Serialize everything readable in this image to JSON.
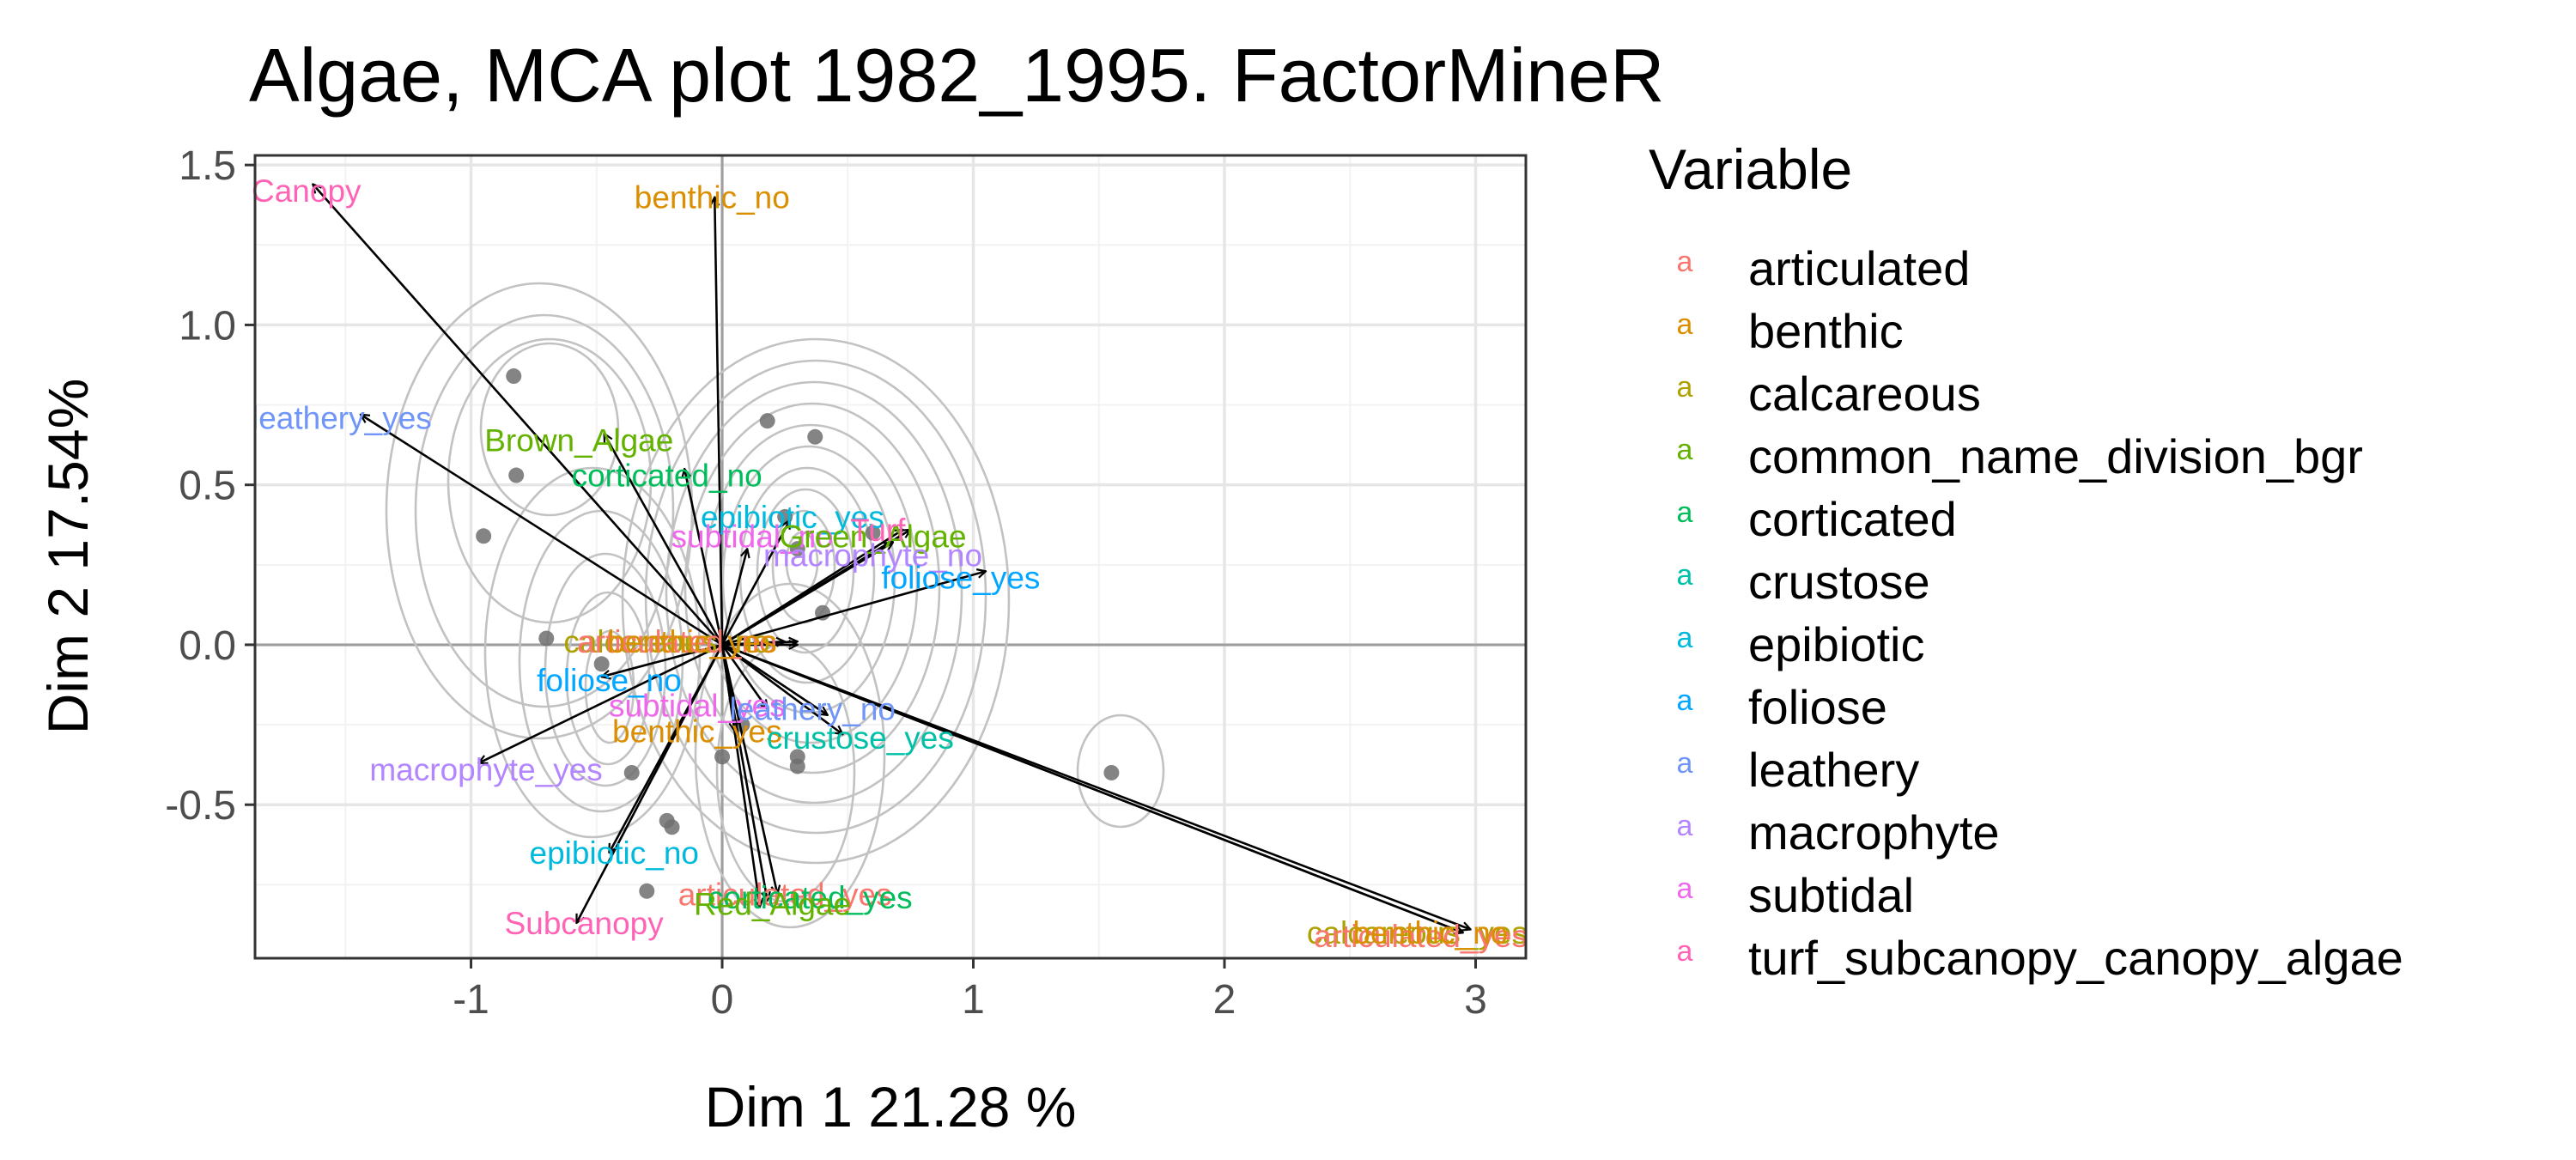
{
  "chart_data": {
    "type": "scatter",
    "title": "Algae, MCA plot 1982_1995. FactorMineR",
    "xlabel": "Dim 1 21.28 %",
    "ylabel": "Dim 2 17.54%",
    "xlim": [
      -1.86,
      3.2
    ],
    "ylim": [
      -0.98,
      1.53
    ],
    "xticks": [
      -1,
      0,
      1,
      2,
      3
    ],
    "yticks": [
      -0.5,
      0.0,
      0.5,
      1.0,
      1.5
    ],
    "xtick_labels": [
      "-1",
      "0",
      "1",
      "2",
      "3"
    ],
    "ytick_labels": [
      "-0.5",
      "0.0",
      "0.5",
      "1.0",
      "1.5"
    ],
    "legend": {
      "title": "Variable",
      "position": "right",
      "key_glyph": "a",
      "entries": [
        {
          "name": "articulated",
          "color": "#F8766D"
        },
        {
          "name": "benthic",
          "color": "#DB8E00"
        },
        {
          "name": "calcareous",
          "color": "#AEA200"
        },
        {
          "name": "common_name_division_bgr",
          "color": "#64B200"
        },
        {
          "name": "corticated",
          "color": "#00BD5C"
        },
        {
          "name": "crustose",
          "color": "#00C1A7"
        },
        {
          "name": "epibiotic",
          "color": "#00BADE"
        },
        {
          "name": "foliose",
          "color": "#00A6FF"
        },
        {
          "name": "leathery",
          "color": "#6F95F8"
        },
        {
          "name": "macrophyte",
          "color": "#B385FF"
        },
        {
          "name": "subtidal",
          "color": "#EF67EB"
        },
        {
          "name": "turf_subcanopy_canopy_algae",
          "color": "#FF63B6"
        }
      ]
    },
    "points": [
      {
        "x": -0.83,
        "y": 0.84
      },
      {
        "x": -0.82,
        "y": 0.53
      },
      {
        "x": -0.95,
        "y": 0.34
      },
      {
        "x": -0.7,
        "y": 0.02
      },
      {
        "x": -0.48,
        "y": -0.06
      },
      {
        "x": -0.36,
        "y": -0.4
      },
      {
        "x": -0.22,
        "y": -0.55
      },
      {
        "x": -0.2,
        "y": -0.57
      },
      {
        "x": -0.3,
        "y": -0.77
      },
      {
        "x": 0.18,
        "y": 0.7
      },
      {
        "x": 0.37,
        "y": 0.65
      },
      {
        "x": 0.25,
        "y": 0.4
      },
      {
        "x": 0.3,
        "y": 0.3
      },
      {
        "x": 0.6,
        "y": 0.35
      },
      {
        "x": 0.4,
        "y": 0.1
      },
      {
        "x": 0.3,
        "y": -0.35
      },
      {
        "x": 0.3,
        "y": -0.38
      },
      {
        "x": 0.0,
        "y": -0.35
      },
      {
        "x": 0.08,
        "y": -0.25
      },
      {
        "x": 1.55,
        "y": -0.4
      }
    ],
    "arrows": [
      {
        "label": "Canopy",
        "variable": "turf_subcanopy_canopy_algae",
        "x": -1.63,
        "y": 1.44,
        "lx": -1.72,
        "ly": 1.42
      },
      {
        "label": "benthic_no",
        "variable": "benthic",
        "x": -0.03,
        "y": 1.4,
        "lx": -0.04,
        "ly": 1.4
      },
      {
        "label": "leathery_yes",
        "variable": "leathery",
        "x": -1.44,
        "y": 0.72,
        "lx": -1.5,
        "ly": 0.71
      },
      {
        "label": "Brown_Algae",
        "variable": "common_name_division_bgr",
        "x": -0.47,
        "y": 0.66,
        "lx": -0.57,
        "ly": 0.64
      },
      {
        "label": "corticated_no",
        "variable": "corticated",
        "x": -0.15,
        "y": 0.55,
        "lx": -0.22,
        "ly": 0.53
      },
      {
        "label": "epibiotic_yes",
        "variable": "epibiotic",
        "x": 0.27,
        "y": 0.39,
        "lx": 0.28,
        "ly": 0.4
      },
      {
        "label": "subtidal_no",
        "variable": "subtidal",
        "x": 0.1,
        "y": 0.3,
        "lx": 0.12,
        "ly": 0.34
      },
      {
        "label": "Green_Algae",
        "variable": "common_name_division_bgr",
        "x": 0.75,
        "y": 0.36,
        "lx": 0.6,
        "ly": 0.34
      },
      {
        "label": "Turf",
        "variable": "turf_subcanopy_canopy_algae",
        "x": 0.72,
        "y": 0.36,
        "lx": 0.62,
        "ly": 0.36
      },
      {
        "label": "macrophyte_no",
        "variable": "macrophyte",
        "x": 0.68,
        "y": 0.32,
        "lx": 0.6,
        "ly": 0.28
      },
      {
        "label": "foliose_yes",
        "variable": "foliose",
        "x": 1.05,
        "y": 0.23,
        "lx": 0.95,
        "ly": 0.21
      },
      {
        "label": "calcareous_no",
        "variable": "calcareous",
        "x": 0.25,
        "y": 0.01,
        "lx": -0.22,
        "ly": 0.01
      },
      {
        "label": "articulated_no",
        "variable": "articulated",
        "x": 0.3,
        "y": 0.01,
        "lx": -0.18,
        "ly": 0.01
      },
      {
        "label": "benthic_yes",
        "variable": "benthic",
        "x": 0.3,
        "y": 0.0,
        "lx": -0.12,
        "ly": 0.01
      },
      {
        "label": "foliose_no",
        "variable": "foliose",
        "x": -0.48,
        "y": -0.1,
        "lx": -0.45,
        "ly": -0.11
      },
      {
        "label": "subtidal_yes",
        "variable": "subtidal",
        "x": 0.18,
        "y": -0.2,
        "lx": -0.1,
        "ly": -0.19
      },
      {
        "label": "leathery_no",
        "variable": "leathery",
        "x": 0.42,
        "y": -0.22,
        "lx": 0.36,
        "ly": -0.2
      },
      {
        "label": "benthic_yes",
        "variable": "benthic",
        "x": 0.05,
        "y": -0.27,
        "lx": -0.1,
        "ly": -0.27
      },
      {
        "label": "crustose_yes",
        "variable": "crustose",
        "x": 0.48,
        "y": -0.28,
        "lx": 0.55,
        "ly": -0.29
      },
      {
        "label": "macrophyte_yes",
        "variable": "macrophyte",
        "x": -0.97,
        "y": -0.37,
        "lx": -0.94,
        "ly": -0.39
      },
      {
        "label": "epibiotic_no",
        "variable": "epibiotic",
        "x": -0.45,
        "y": -0.65,
        "lx": -0.43,
        "ly": -0.65
      },
      {
        "label": "articulated_yes",
        "variable": "articulated",
        "x": 0.18,
        "y": -0.8,
        "lx": 0.25,
        "ly": -0.78
      },
      {
        "label": "corticated_yes",
        "variable": "corticated",
        "x": 0.22,
        "y": -0.78,
        "lx": 0.35,
        "ly": -0.79
      },
      {
        "label": "Red_Algae",
        "variable": "common_name_division_bgr",
        "x": 0.15,
        "y": -0.82,
        "lx": 0.2,
        "ly": -0.81
      },
      {
        "label": "Subcanopy",
        "variable": "turf_subcanopy_canopy_algae",
        "x": -0.58,
        "y": -0.87,
        "lx": -0.55,
        "ly": -0.87
      },
      {
        "label": "calcareous_yes",
        "variable": "calcareous",
        "x": 2.98,
        "y": -0.89,
        "lx": 2.82,
        "ly": -0.9
      },
      {
        "label": "articulated_yes",
        "variable": "articulated",
        "x": 2.95,
        "y": -0.9,
        "lx": 2.82,
        "ly": -0.91
      },
      {
        "label": "benthic_no",
        "variable": "benthic",
        "x": 2.95,
        "y": -0.9,
        "lx": 2.82,
        "ly": -0.9
      }
    ]
  }
}
